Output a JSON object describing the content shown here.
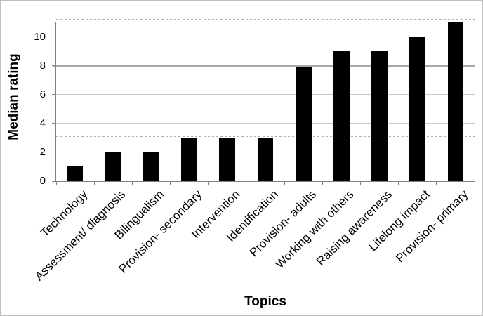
{
  "figure": {
    "background": "#ffffff",
    "border_color": "#bfbfbf"
  },
  "chart_data": {
    "type": "bar",
    "title": "",
    "xlabel": "Topics",
    "ylabel": "Median rating",
    "categories": [
      "Technology",
      "Assessment/ diagnosis",
      "Bilingualism",
      "Provision- secondary",
      "Intervention",
      "Identification",
      "Provision- adults",
      "Working with others",
      "Raising awareness",
      "Lifelong impact",
      "Provision- primary"
    ],
    "values": [
      1,
      2,
      2,
      3,
      3,
      3,
      7.9,
      9,
      9,
      10,
      11
    ],
    "ylim": [
      0,
      11
    ],
    "yticks": [
      0,
      2,
      4,
      6,
      8,
      10
    ],
    "grid": true,
    "legend": "none",
    "bar_color": "#000000",
    "axis_color": "#808080",
    "gridline_color": "#c9c9c9",
    "tick_label_color": "#000000",
    "reference_lines": [
      {
        "value": 8,
        "style": "solid",
        "color": "#a6a6a6",
        "thickness_px": 4
      },
      {
        "value": 3.1,
        "style": "dashed",
        "color": "#b0b0b0",
        "thickness_px": 2
      },
      {
        "value": 11.2,
        "style": "dashed",
        "color": "#b0b0b0",
        "thickness_px": 2
      }
    ]
  }
}
